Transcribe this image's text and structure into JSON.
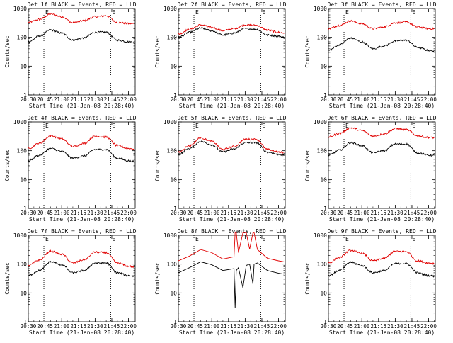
{
  "figure": {
    "ylabel": "Counts/sec",
    "xlabel": "Start Time (21-Jan-08 20:28:40)",
    "x_ticks": [
      "20:30",
      "20:45",
      "21:00",
      "21:15",
      "21:30",
      "21:45",
      "22:00"
    ],
    "y_ticks": [
      "1",
      "10",
      "100",
      "1000"
    ],
    "eclipse_marker": "E",
    "colors": {
      "events": "#000000",
      "lld": "#e00000",
      "axes": "#000000",
      "background": "#ffffff"
    }
  },
  "chart_data": [
    {
      "type": "line",
      "title": "Det 1f BLACK = Events, RED = LLD",
      "xlabel": "Start Time (21-Jan-08 20:28:40)",
      "ylabel": "Counts/sec",
      "y_scale": "log",
      "ylim": [
        1,
        1000
      ],
      "xlim": [
        "20:30",
        "22:06"
      ],
      "eclipse_lines": [
        "20:44",
        "21:44"
      ],
      "x": [
        "20:30",
        "20:40",
        "20:50",
        "21:00",
        "21:10",
        "21:20",
        "21:30",
        "21:40",
        "21:50",
        "22:00",
        "22:05"
      ],
      "series": [
        {
          "values": [
            330,
            420,
            640,
            520,
            320,
            380,
            520,
            560,
            330,
            300,
            300
          ]
        },
        {
          "values": [
            70,
            110,
            180,
            140,
            80,
            95,
            150,
            150,
            80,
            70,
            68
          ]
        }
      ]
    },
    {
      "type": "line",
      "title": "Det 2f BLACK = Events, RED = LLD",
      "xlabel": "Start Time (21-Jan-08 20:28:40)",
      "ylabel": "Counts/sec",
      "y_scale": "log",
      "ylim": [
        1,
        1000
      ],
      "xlim": [
        "20:30",
        "22:06"
      ],
      "eclipse_lines": [
        "20:44",
        "21:44"
      ],
      "x": [
        "20:30",
        "20:40",
        "20:50",
        "21:00",
        "21:10",
        "21:20",
        "21:30",
        "21:40",
        "21:50",
        "22:00",
        "22:05"
      ],
      "series": [
        {
          "values": [
            130,
            190,
            270,
            220,
            170,
            200,
            270,
            260,
            180,
            150,
            140
          ]
        },
        {
          "values": [
            100,
            150,
            210,
            170,
            120,
            140,
            200,
            190,
            120,
            110,
            100
          ]
        }
      ]
    },
    {
      "type": "line",
      "title": "Det 3f BLACK = Events, RED = LLD",
      "xlabel": "Start Time (21-Jan-08 20:28:40)",
      "ylabel": "Counts/sec",
      "y_scale": "log",
      "ylim": [
        1,
        1000
      ],
      "xlim": [
        "20:30",
        "22:06"
      ],
      "eclipse_lines": [
        "20:44",
        "21:44"
      ],
      "x": [
        "20:30",
        "20:40",
        "20:50",
        "21:00",
        "21:10",
        "21:20",
        "21:30",
        "21:40",
        "21:50",
        "22:00",
        "22:05"
      ],
      "series": [
        {
          "values": [
            200,
            260,
            370,
            300,
            200,
            230,
            320,
            340,
            230,
            200,
            200
          ]
        },
        {
          "values": [
            35,
            55,
            95,
            70,
            40,
            50,
            75,
            80,
            45,
            35,
            33
          ]
        }
      ]
    },
    {
      "type": "line",
      "title": "Det 4f BLACK = Events, RED = LLD",
      "xlabel": "Start Time (21-Jan-08 20:28:40)",
      "ylabel": "Counts/sec",
      "y_scale": "log",
      "ylim": [
        1,
        1000
      ],
      "xlim": [
        "20:30",
        "22:06"
      ],
      "eclipse_lines": [
        "20:44",
        "21:44"
      ],
      "x": [
        "20:30",
        "20:40",
        "20:50",
        "21:00",
        "21:10",
        "21:20",
        "21:30",
        "21:40",
        "21:50",
        "22:00",
        "22:05"
      ],
      "series": [
        {
          "values": [
            120,
            180,
            330,
            260,
            140,
            180,
            320,
            300,
            150,
            120,
            115
          ]
        },
        {
          "values": [
            45,
            70,
            120,
            95,
            55,
            65,
            110,
            110,
            55,
            45,
            42
          ]
        }
      ]
    },
    {
      "type": "line",
      "title": "Det 5f BLACK = Events, RED = LLD",
      "xlabel": "Start Time (21-Jan-08 20:28:40)",
      "ylabel": "Counts/sec",
      "y_scale": "log",
      "ylim": [
        1,
        1000
      ],
      "xlim": [
        "20:30",
        "22:06"
      ],
      "eclipse_lines": [
        "20:44",
        "21:44"
      ],
      "x": [
        "20:30",
        "20:40",
        "20:50",
        "21:00",
        "21:10",
        "21:20",
        "21:30",
        "21:40",
        "21:50",
        "22:00",
        "22:05"
      ],
      "series": [
        {
          "values": [
            90,
            150,
            280,
            210,
            110,
            140,
            250,
            250,
            110,
            90,
            85
          ]
        },
        {
          "values": [
            75,
            120,
            210,
            160,
            90,
            115,
            190,
            190,
            90,
            75,
            70
          ]
        }
      ]
    },
    {
      "type": "line",
      "title": "Det 6f BLACK = Events, RED = LLD",
      "xlabel": "Start Time (21-Jan-08 20:28:40)",
      "ylabel": "Counts/sec",
      "y_scale": "log",
      "ylim": [
        1,
        1000
      ],
      "xlim": [
        "20:30",
        "22:06"
      ],
      "eclipse_lines": [
        "20:44",
        "21:44"
      ],
      "x": [
        "20:30",
        "20:40",
        "20:50",
        "21:00",
        "21:10",
        "21:20",
        "21:30",
        "21:40",
        "21:50",
        "22:00",
        "22:05"
      ],
      "series": [
        {
          "values": [
            300,
            400,
            620,
            500,
            320,
            380,
            580,
            540,
            330,
            290,
            280
          ]
        },
        {
          "values": [
            70,
            105,
            190,
            150,
            85,
            100,
            170,
            170,
            85,
            70,
            68
          ]
        }
      ]
    },
    {
      "type": "line",
      "title": "Det 7f BLACK = Events, RED = LLD",
      "xlabel": "Start Time (21-Jan-08 20:28:40)",
      "ylabel": "Counts/sec",
      "y_scale": "log",
      "ylim": [
        1,
        1000
      ],
      "xlim": [
        "20:30",
        "22:06"
      ],
      "eclipse_lines": [
        "20:44",
        "21:44"
      ],
      "x": [
        "20:30",
        "20:40",
        "20:50",
        "21:00",
        "21:10",
        "21:20",
        "21:30",
        "21:40",
        "21:50",
        "22:00",
        "22:05"
      ],
      "series": [
        {
          "values": [
            90,
            140,
            280,
            220,
            110,
            140,
            260,
            250,
            110,
            85,
            80
          ]
        },
        {
          "values": [
            40,
            60,
            120,
            95,
            50,
            60,
            110,
            110,
            50,
            40,
            38
          ]
        }
      ]
    },
    {
      "type": "line",
      "title": "Det 8f BLACK = Events, RED = LLD",
      "xlabel": "Start Time (21-Jan-08 20:28:40)",
      "ylabel": "Counts/sec",
      "y_scale": "log",
      "ylim": [
        1,
        1000
      ],
      "xlim": [
        "20:30",
        "22:06"
      ],
      "eclipse_lines": [
        "20:44",
        "21:44"
      ],
      "x": [
        "20:30",
        "20:40",
        "20:50",
        "21:00",
        "21:10",
        "21:20",
        "21:21",
        "21:22",
        "21:24",
        "21:28",
        "21:31",
        "21:34",
        "21:37",
        "21:38",
        "21:41",
        "21:50",
        "22:00",
        "22:05"
      ],
      "series": [
        {
          "values": [
            130,
            190,
            320,
            250,
            150,
            180,
            2000,
            2000,
            250,
            2000,
            2000,
            330,
            2000,
            2000,
            320,
            160,
            130,
            120
          ]
        },
        {
          "values": [
            50,
            75,
            120,
            95,
            60,
            70,
            3,
            60,
            75,
            15,
            90,
            100,
            20,
            100,
            110,
            60,
            48,
            45
          ]
        }
      ]
    },
    {
      "type": "line",
      "title": "Det 9f BLACK = Events, RED = LLD",
      "xlabel": "Start Time (21-Jan-08 20:28:40)",
      "ylabel": "Counts/sec",
      "y_scale": "log",
      "ylim": [
        1,
        1000
      ],
      "xlim": [
        "20:30",
        "22:06"
      ],
      "eclipse_lines": [
        "20:44",
        "21:44"
      ],
      "x": [
        "20:30",
        "20:40",
        "20:50",
        "21:00",
        "21:10",
        "21:20",
        "21:30",
        "21:40",
        "21:50",
        "22:00",
        "22:05"
      ],
      "series": [
        {
          "values": [
            110,
            170,
            300,
            240,
            130,
            160,
            280,
            270,
            130,
            110,
            105
          ]
        },
        {
          "values": [
            40,
            60,
            115,
            90,
            50,
            60,
            105,
            105,
            50,
            40,
            38
          ]
        }
      ]
    }
  ]
}
